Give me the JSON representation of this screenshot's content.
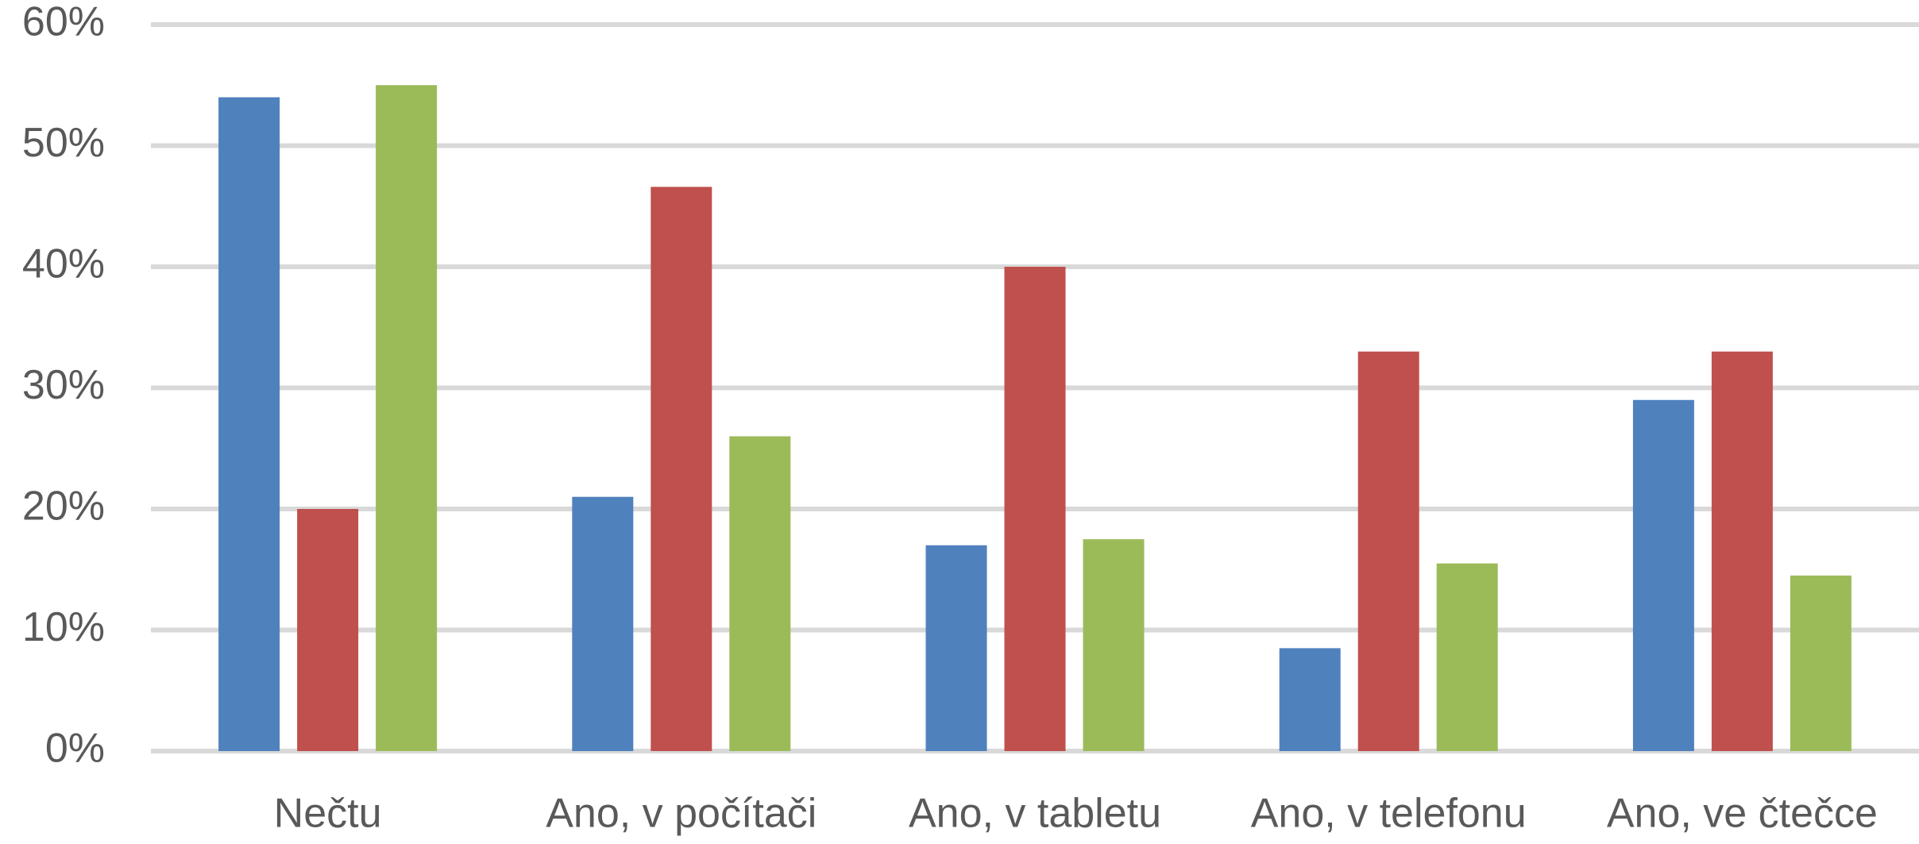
{
  "chart_data": {
    "type": "bar",
    "categories": [
      "Nečtu",
      "Ano, v počítači",
      "Ano, v tabletu",
      "Ano, v telefonu",
      "Ano, ve čtečce"
    ],
    "series": [
      {
        "color": "#4f81bd",
        "values": [
          54,
          21,
          17,
          8.5,
          29
        ]
      },
      {
        "color": "#c0504d",
        "values": [
          20,
          46.6,
          40,
          33,
          33
        ]
      },
      {
        "color": "#9bbb59",
        "values": [
          55,
          26,
          17.5,
          15.5,
          14.5
        ]
      }
    ],
    "ylim": [
      0,
      60
    ],
    "yticks": [
      {
        "value": 0,
        "label": "0%"
      },
      {
        "value": 10,
        "label": "10%"
      },
      {
        "value": 20,
        "label": "20%"
      },
      {
        "value": 30,
        "label": "30%"
      },
      {
        "value": 40,
        "label": "40%"
      },
      {
        "value": 50,
        "label": "50%"
      },
      {
        "value": 60,
        "label": "60%"
      }
    ],
    "grid": true
  }
}
